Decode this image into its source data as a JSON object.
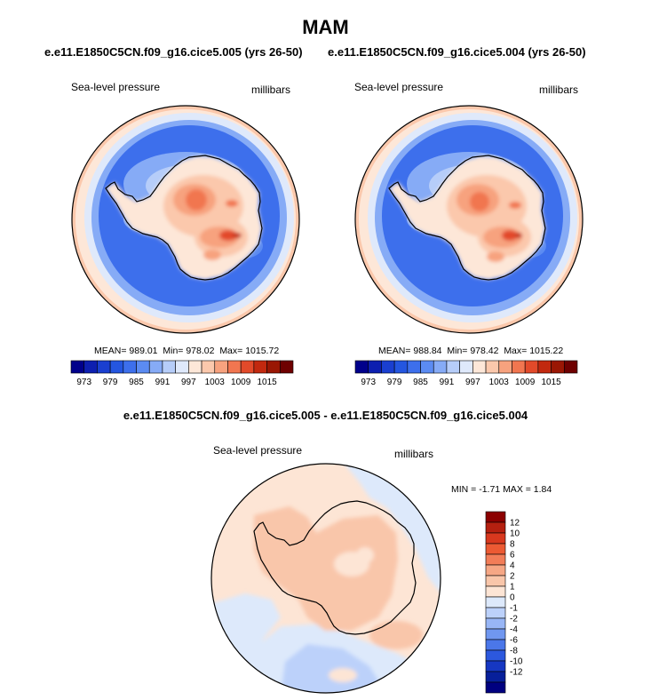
{
  "title": "MAM",
  "panels": {
    "left": {
      "case": "e.e11.E1850C5CN.f09_g16.cice5.005 (yrs 26-50)",
      "variable": "Sea-level pressure",
      "units": "millibars",
      "mean_label": "MEAN=",
      "mean": "989.01",
      "min_label": "Min=",
      "min": "978.02",
      "max_label": "Max=",
      "max": "1015.72"
    },
    "right": {
      "case": "e.e11.E1850C5CN.f09_g16.cice5.004 (yrs 26-50)",
      "variable": "Sea-level pressure",
      "units": "millibars",
      "mean_label": "MEAN=",
      "mean": "988.84",
      "min_label": "Min=",
      "min": "978.42",
      "max_label": "Max=",
      "max": "1015.22"
    },
    "diff": {
      "title": "e.e11.E1850C5CN.f09_g16.cice5.005 - e.e11.E1850C5CN.f09_g16.cice5.004",
      "variable": "Sea-level pressure",
      "units": "millibars",
      "stats": "MIN =  -1.71 MAX =   1.84"
    }
  },
  "colorbar_abs": {
    "colors": [
      "#00008b",
      "#0d1fb0",
      "#1a3fd0",
      "#2456e0",
      "#3d6fec",
      "#5b8bf2",
      "#86abf6",
      "#b6cdf9",
      "#dfe9fb",
      "#fde7d8",
      "#fbc8ac",
      "#f7a27e",
      "#f17650",
      "#e24a2a",
      "#c2290f",
      "#9a1704",
      "#6e0000"
    ],
    "tick_labels": [
      "973",
      "979",
      "985",
      "991",
      "997",
      "1003",
      "1009",
      "1015"
    ]
  },
  "colorbar_diff": {
    "colors_top_to_bottom": [
      "#8b0000",
      "#b52010",
      "#d8381e",
      "#ec5a33",
      "#f27d58",
      "#f6a785",
      "#f9c6aa",
      "#fde5d5",
      "#dde9fb",
      "#bcd1fa",
      "#98b6f6",
      "#7097f0",
      "#4b77e9",
      "#2c58de",
      "#1637c2",
      "#071f9a",
      "#000080"
    ],
    "tick_labels_top_to_bottom": [
      "12",
      "10",
      "8",
      "6",
      "4",
      "2",
      "1",
      "0",
      "-1",
      "-2",
      "-4",
      "-6",
      "-8",
      "-10",
      "-12"
    ]
  },
  "chart_data": [
    {
      "type": "heatmap",
      "projection": "south polar stereographic",
      "variable": "Sea-level pressure",
      "units": "millibars",
      "case": "e.e11.E1850C5CN.f09_g16.cice5.005 (yrs 26-50)",
      "season": "MAM",
      "mean": 989.01,
      "min": 978.02,
      "max": 1015.72,
      "contour_levels": [
        973,
        976,
        979,
        982,
        985,
        988,
        991,
        994,
        997,
        1000,
        1003,
        1006,
        1009,
        1012,
        1015,
        1018
      ],
      "colorbar_tick_labels": [
        "973",
        "979",
        "985",
        "991",
        "997",
        "1003",
        "1009",
        "1015"
      ]
    },
    {
      "type": "heatmap",
      "projection": "south polar stereographic",
      "variable": "Sea-level pressure",
      "units": "millibars",
      "case": "e.e11.E1850C5CN.f09_g16.cice5.004 (yrs 26-50)",
      "season": "MAM",
      "mean": 988.84,
      "min": 978.42,
      "max": 1015.22,
      "contour_levels": [
        973,
        976,
        979,
        982,
        985,
        988,
        991,
        994,
        997,
        1000,
        1003,
        1006,
        1009,
        1012,
        1015,
        1018
      ],
      "colorbar_tick_labels": [
        "973",
        "979",
        "985",
        "991",
        "997",
        "1003",
        "1009",
        "1015"
      ]
    },
    {
      "type": "heatmap",
      "projection": "south polar stereographic",
      "variable": "Sea-level pressure",
      "units": "millibars",
      "case": "e.e11.E1850C5CN.f09_g16.cice5.005 - e.e11.E1850C5CN.f09_g16.cice5.004",
      "min": -1.71,
      "max": 1.84,
      "contour_levels": [
        -12,
        -10,
        -8,
        -6,
        -4,
        -2,
        -1,
        0,
        1,
        2,
        4,
        6,
        8,
        10,
        12
      ]
    }
  ]
}
